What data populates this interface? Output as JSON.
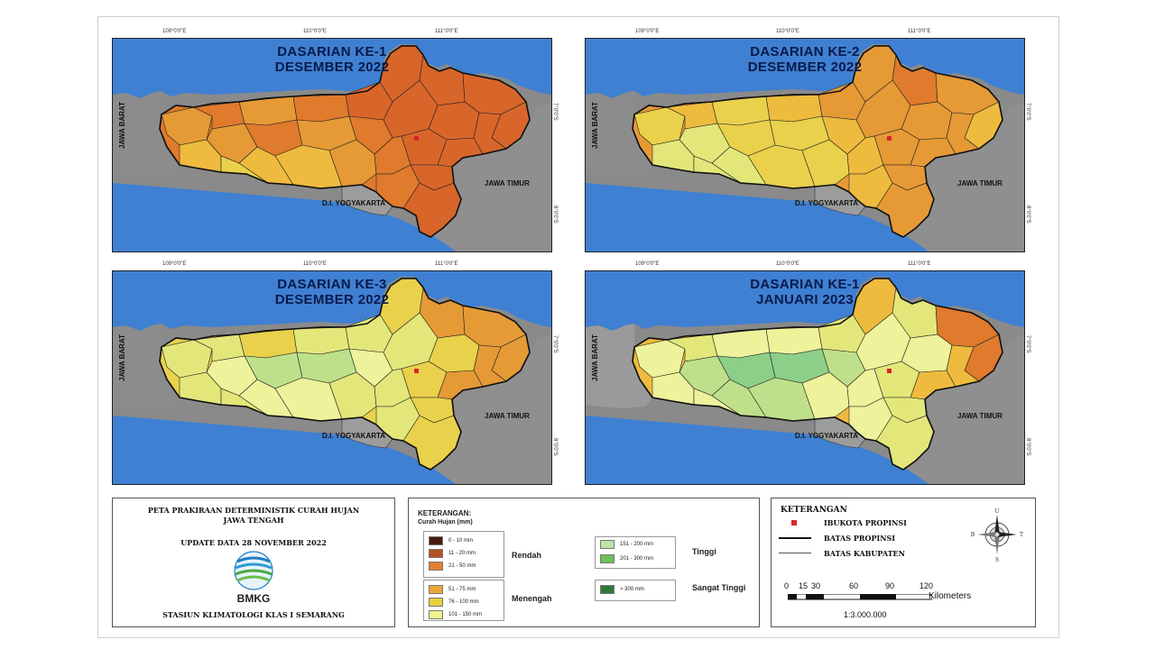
{
  "maps": [
    {
      "title1": "DASARIAN KE-1",
      "title2": "DESEMBER 2022",
      "palette": [
        "#d8662a",
        "#e07a2c",
        "#e59a36",
        "#eebb3e",
        "#e9d14c",
        "#e3e77a"
      ]
    },
    {
      "title1": "DASARIAN KE-2",
      "title2": "DESEMBER 2022",
      "palette": [
        "#e07a2c",
        "#e59a36",
        "#eebb3e",
        "#e9d14c",
        "#e3e77a",
        "#eef29a"
      ]
    },
    {
      "title1": "DASARIAN KE-3",
      "title2": "DESEMBER 2022",
      "palette": [
        "#e59a36",
        "#e9d14c",
        "#e3e77a",
        "#eef29a",
        "#bfe08a",
        "#9bd089"
      ]
    },
    {
      "title1": "DASARIAN KE-1",
      "title2": "JANUARI 2023",
      "palette": [
        "#e07a2c",
        "#eebb3e",
        "#e3e77a",
        "#eef29a",
        "#bfe08a",
        "#8ccf88"
      ]
    }
  ],
  "map_labels": {
    "jawa_barat": "JAWA BARAT",
    "jawa_timur": "JAWA TIMUR",
    "diy": "D.I. YOGYAKARTA"
  },
  "ticks": {
    "top": [
      "109°0'0\"E",
      "110°0'0\"E",
      "111°0'0\"E"
    ],
    "right": [
      "7°0'0\"S",
      "8°0'0\"S"
    ]
  },
  "title_box": {
    "line1": "PETA PRAKIRAAN DETERMINISTIK CURAH HUJAN",
    "line2": "JAWA TENGAH",
    "update": "UPDATE DATA 28 NOVEMBER 2022",
    "logo_text": "BMKG",
    "station": "STASIUN KLIMATOLOGI KLAS I SEMARANG"
  },
  "legend": {
    "heading": "KETERANGAN:",
    "subheading": "Curah Hujan (mm)",
    "items": [
      {
        "label": "0 - 10 mm",
        "color": "#4a1a0e"
      },
      {
        "label": "11 - 20 mm",
        "color": "#b4502a"
      },
      {
        "label": "21 - 50 mm",
        "color": "#e47f2d"
      },
      {
        "label": "51 - 75 mm",
        "color": "#eaa73a"
      },
      {
        "label": "76 - 100 mm",
        "color": "#e8d03e"
      },
      {
        "label": "101 - 150 mm",
        "color": "#eef390"
      },
      {
        "label": "151 - 200 mm",
        "color": "#b9e4a4"
      },
      {
        "label": "201 - 300 mm",
        "color": "#6fbf5c"
      },
      {
        "label": "> 300 mm",
        "color": "#2f7a3a"
      }
    ],
    "groups": {
      "rendah": "Rendah",
      "menengah": "Menengah",
      "tinggi": "Tinggi",
      "sangat_tinggi": "Sangat Tinggi"
    }
  },
  "keterangan": {
    "heading": "KETERANGAN",
    "ibukota": "IBUKOTA PROPINSI",
    "batas_propinsi": "BATAS PROPINSI",
    "batas_kabupaten": "BATAS KABUPATEN",
    "scale_ticks": [
      "0",
      "15",
      "30",
      "60",
      "90",
      "120"
    ],
    "scale_unit": "Kilometers",
    "scale_ratio": "1:3.000.000",
    "compass_letters": [
      "U",
      "T",
      "S",
      "B"
    ]
  }
}
